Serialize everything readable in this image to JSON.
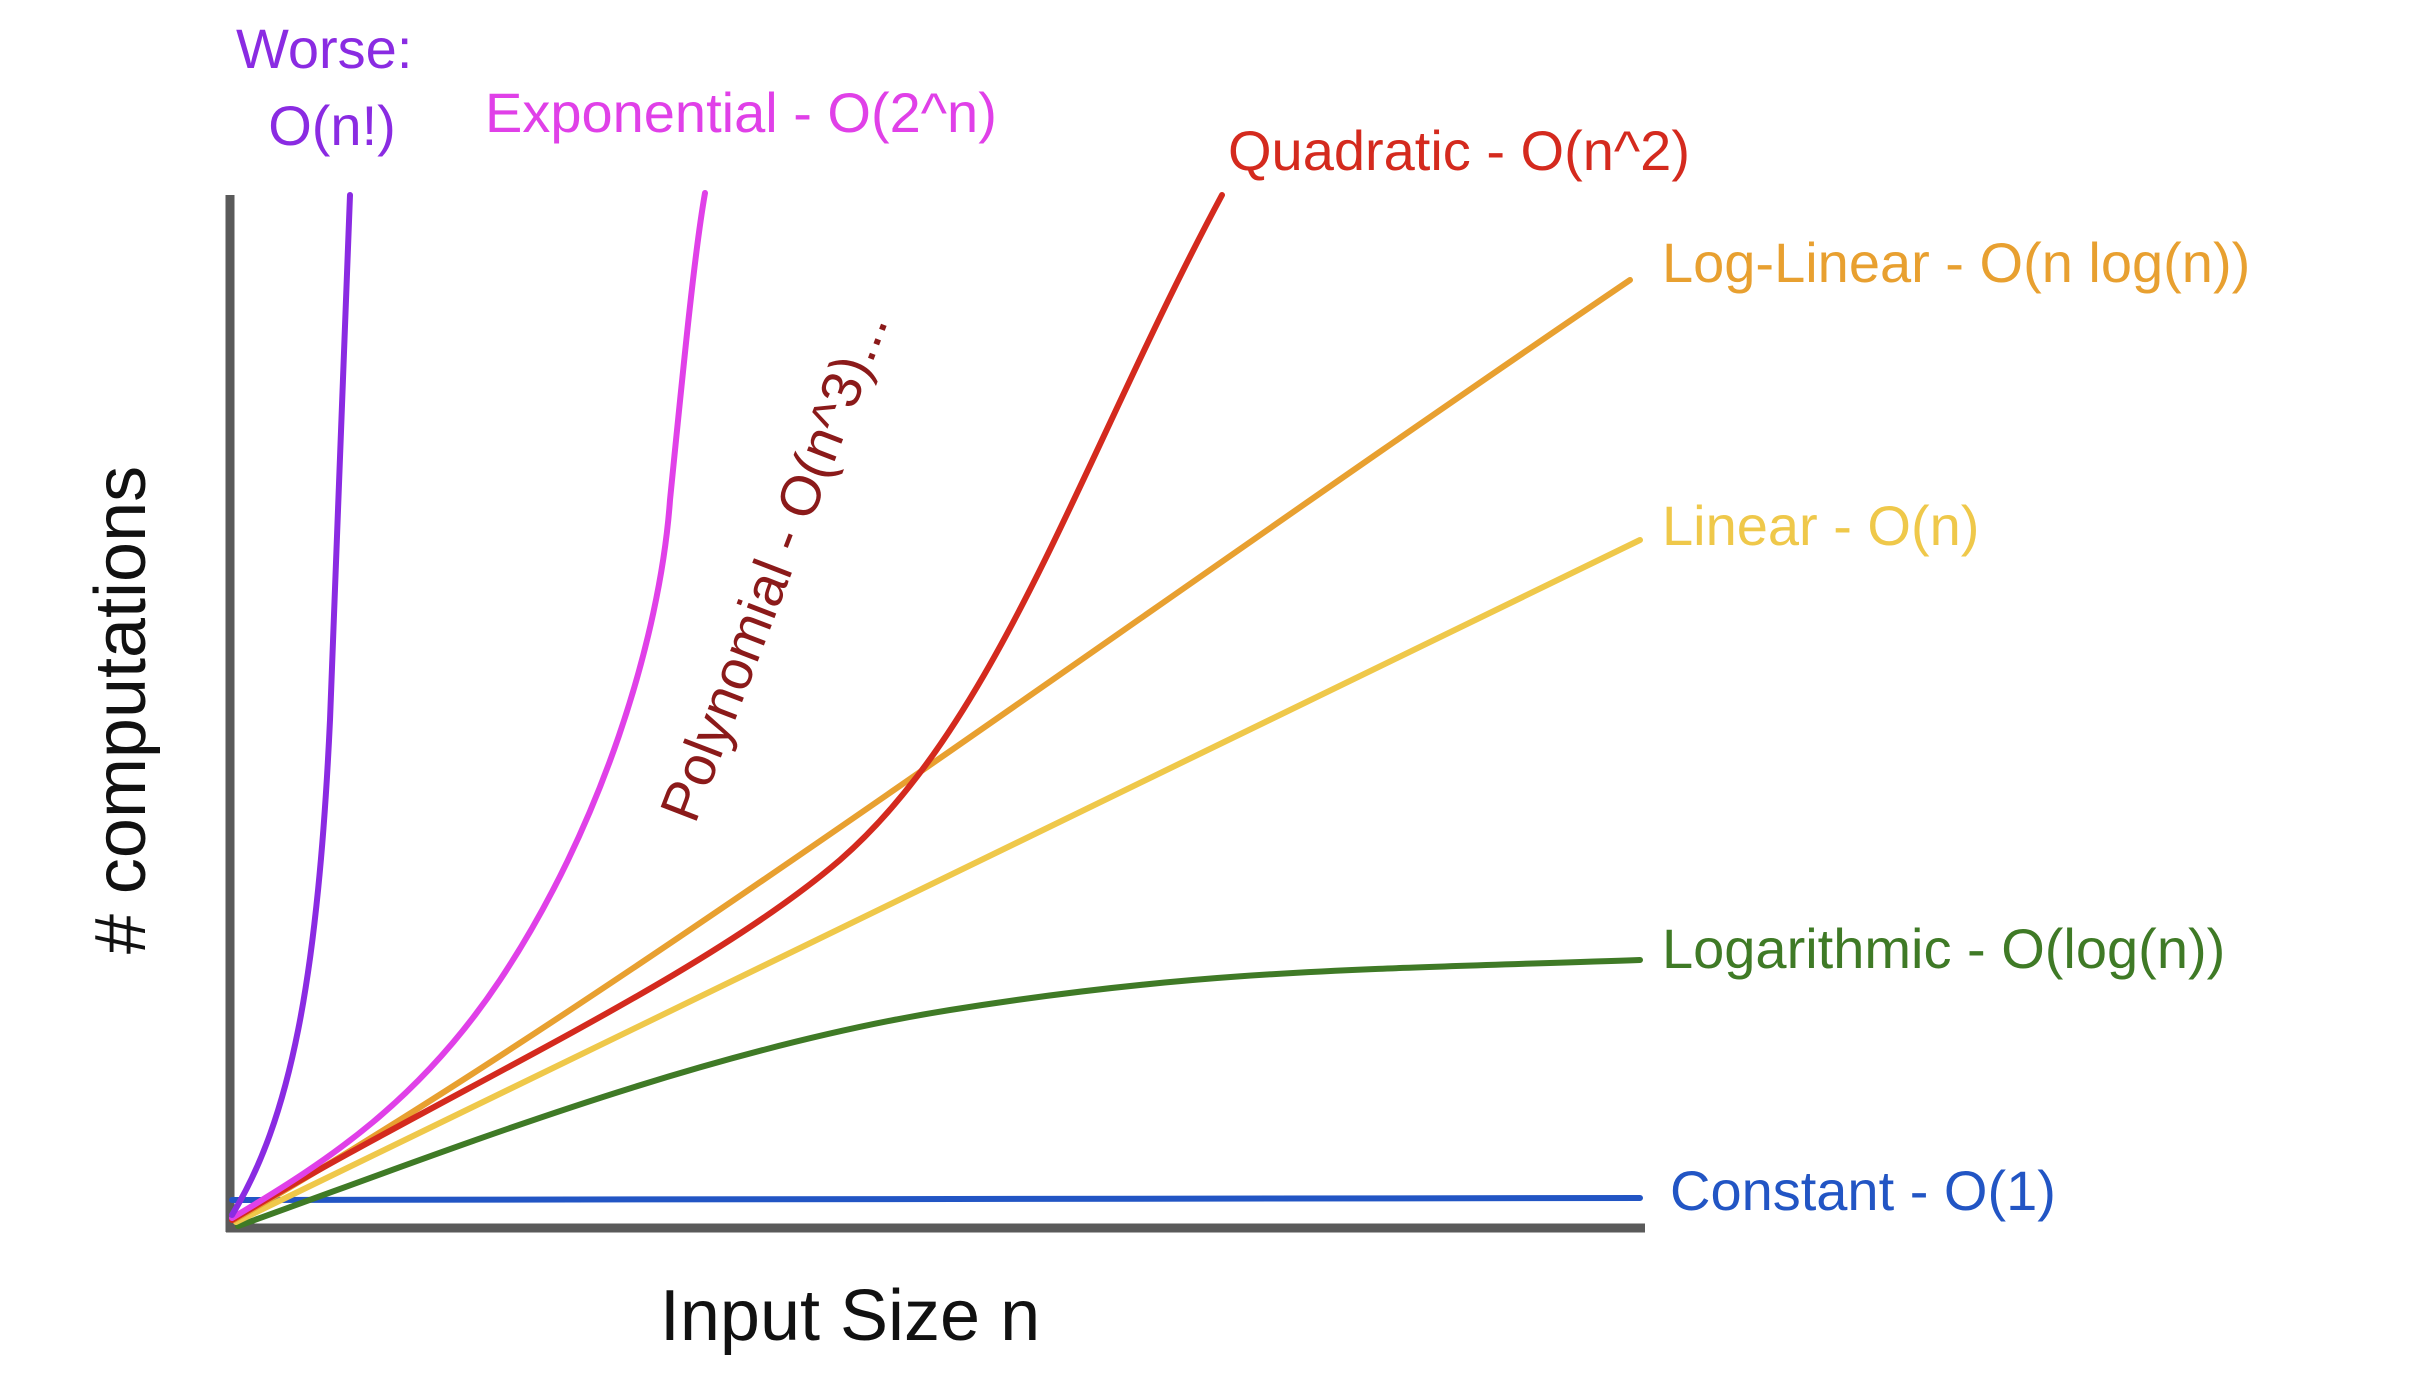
{
  "chart_data": {
    "type": "line",
    "title": "",
    "xlabel": "Input Size n",
    "ylabel": "# computations",
    "grid": false,
    "legend": "none",
    "axis_color": "#5a5a5a",
    "series": [
      {
        "key": "factorial",
        "name": "Worse: O(n!)",
        "label_lines": [
          "Worse:",
          "O(n!)"
        ],
        "color": "#8a2be2"
      },
      {
        "key": "exponential",
        "name": "Exponential - O(2^n)",
        "label_lines": [
          "Exponential - O(2^n)"
        ],
        "color": "#e040e8"
      },
      {
        "key": "polynomial",
        "name": "Polynomial - O(n^3)...",
        "label_lines": [
          "Polynomial - O(n^3)..."
        ],
        "color": "#8b1a1a"
      },
      {
        "key": "quadratic",
        "name": "Quadratic - O(n^2)",
        "label_lines": [
          "Quadratic - O(n^2)"
        ],
        "color": "#d42a1e"
      },
      {
        "key": "loglinear",
        "name": "Log-Linear - O(n log(n))",
        "label_lines": [
          "Log-Linear - O(n log(n))"
        ],
        "color": "#e8a030"
      },
      {
        "key": "linear",
        "name": "Linear - O(n)",
        "label_lines": [
          "Linear - O(n)"
        ],
        "color": "#efc84a"
      },
      {
        "key": "logarithmic",
        "name": "Logarithmic - O(log(n))",
        "label_lines": [
          "Logarithmic - O(log(n))"
        ],
        "color": "#3f7a26"
      },
      {
        "key": "constant",
        "name": "Constant - O(1)",
        "label_lines": [
          "Constant - O(1)"
        ],
        "color": "#2255c4"
      }
    ]
  }
}
